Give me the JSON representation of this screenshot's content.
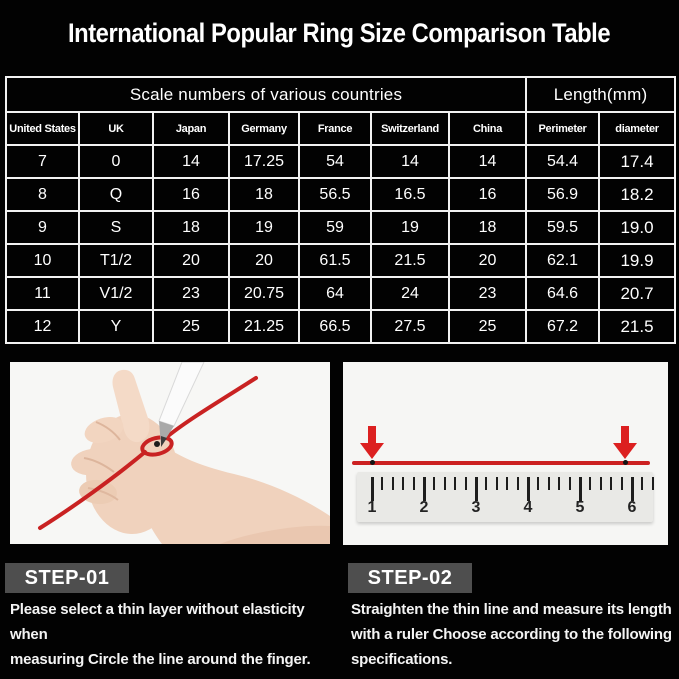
{
  "title": "International Popular Ring Size Comparison Table",
  "table": {
    "group_headers": [
      "Scale numbers of various countries",
      "Length(mm)"
    ],
    "columns": [
      "United States",
      "UK",
      "Japan",
      "Germany",
      "France",
      "Switzerland",
      "China",
      "Perimeter",
      "diameter"
    ],
    "rows": [
      [
        "7",
        "0",
        "14",
        "17.25",
        "54",
        "14",
        "14",
        "54.4",
        "17.4"
      ],
      [
        "8",
        "Q",
        "16",
        "18",
        "56.5",
        "16.5",
        "16",
        "56.9",
        "18.2"
      ],
      [
        "9",
        "S",
        "18",
        "19",
        "59",
        "19",
        "18",
        "59.5",
        "19.0"
      ],
      [
        "10",
        "T1/2",
        "20",
        "20",
        "61.5",
        "21.5",
        "20",
        "62.1",
        "19.9"
      ],
      [
        "11",
        "V1/2",
        "23",
        "20.75",
        "64",
        "24",
        "23",
        "64.6",
        "20.7"
      ],
      [
        "12",
        "Y",
        "25",
        "21.25",
        "66.5",
        "27.5",
        "25",
        "67.2",
        "21.5"
      ]
    ]
  },
  "ruler": {
    "numbers": [
      "1",
      "2",
      "3",
      "4",
      "5",
      "6"
    ]
  },
  "steps": [
    {
      "label": "STEP-01",
      "description": "Please select a thin layer without elasticity when\nmeasuring Circle the line around the finger."
    },
    {
      "label": "STEP-02",
      "description": "Straighten the thin line and measure its length\nwith a ruler Choose according to the following\nspecifications."
    }
  ],
  "colors": {
    "background": "#020202",
    "text": "#ffffff",
    "table_border": "#f2f2f2",
    "accent_red": "#cc2121",
    "banner_gray": "#4e4e4e",
    "panel_bg": "#f6f6f4",
    "ruler_bg": "#e9e9e6"
  }
}
